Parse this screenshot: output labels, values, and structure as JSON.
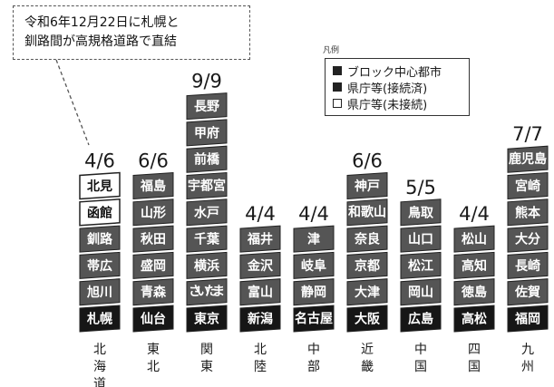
{
  "callout": {
    "line1": "令和6年12月22日に札幌と",
    "line2": "釧路間が高規格道路で直結"
  },
  "legend": {
    "title": "凡例",
    "items": [
      {
        "label": "ブロック中心都市",
        "style": "block"
      },
      {
        "label": "県庁等(接続済)",
        "style": "solid"
      },
      {
        "label": "県庁等(未接続)",
        "style": "open"
      }
    ]
  },
  "colors": {
    "block": "#161616",
    "solid": "#555555",
    "open": "#ffffff"
  },
  "chart_data": {
    "type": "table",
    "categories": [
      "北海道",
      "東北",
      "関東",
      "北陸",
      "中部",
      "近畿",
      "中国",
      "四国",
      "九州"
    ],
    "ratios": [
      "4/6",
      "6/6",
      "9/9",
      "4/4",
      "4/4",
      "6/6",
      "5/5",
      "4/4",
      "7/7"
    ],
    "connected": [
      4,
      6,
      9,
      4,
      4,
      6,
      5,
      4,
      7
    ],
    "total": [
      6,
      6,
      9,
      4,
      4,
      6,
      5,
      4,
      7
    ],
    "cities": [
      [
        {
          "name": "札幌",
          "style": "block"
        },
        {
          "name": "旭川",
          "style": "solid"
        },
        {
          "name": "帯広",
          "style": "solid"
        },
        {
          "name": "釧路",
          "style": "solid"
        },
        {
          "name": "函館",
          "style": "open"
        },
        {
          "name": "北見",
          "style": "open"
        }
      ],
      [
        {
          "name": "仙台",
          "style": "block"
        },
        {
          "name": "青森",
          "style": "solid"
        },
        {
          "name": "盛岡",
          "style": "solid"
        },
        {
          "name": "秋田",
          "style": "solid"
        },
        {
          "name": "山形",
          "style": "solid"
        },
        {
          "name": "福島",
          "style": "solid"
        }
      ],
      [
        {
          "name": "東京",
          "style": "block"
        },
        {
          "name": "さいたま",
          "style": "solid"
        },
        {
          "name": "横浜",
          "style": "solid"
        },
        {
          "name": "千葉",
          "style": "solid"
        },
        {
          "name": "水戸",
          "style": "solid"
        },
        {
          "name": "宇都宮",
          "style": "solid"
        },
        {
          "name": "前橋",
          "style": "solid"
        },
        {
          "name": "甲府",
          "style": "solid"
        },
        {
          "name": "長野",
          "style": "solid"
        }
      ],
      [
        {
          "name": "新潟",
          "style": "block"
        },
        {
          "name": "富山",
          "style": "solid"
        },
        {
          "name": "金沢",
          "style": "solid"
        },
        {
          "name": "福井",
          "style": "solid"
        }
      ],
      [
        {
          "name": "名古屋",
          "style": "block"
        },
        {
          "name": "静岡",
          "style": "solid"
        },
        {
          "name": "岐阜",
          "style": "solid"
        },
        {
          "name": "津",
          "style": "solid"
        }
      ],
      [
        {
          "name": "大阪",
          "style": "block"
        },
        {
          "name": "大津",
          "style": "solid"
        },
        {
          "name": "京都",
          "style": "solid"
        },
        {
          "name": "奈良",
          "style": "solid"
        },
        {
          "name": "和歌山",
          "style": "solid"
        },
        {
          "name": "神戸",
          "style": "solid"
        }
      ],
      [
        {
          "name": "広島",
          "style": "block"
        },
        {
          "name": "岡山",
          "style": "solid"
        },
        {
          "name": "松江",
          "style": "solid"
        },
        {
          "name": "山口",
          "style": "solid"
        },
        {
          "name": "鳥取",
          "style": "solid"
        }
      ],
      [
        {
          "name": "高松",
          "style": "block"
        },
        {
          "name": "徳島",
          "style": "solid"
        },
        {
          "name": "高知",
          "style": "solid"
        },
        {
          "name": "松山",
          "style": "solid"
        }
      ],
      [
        {
          "name": "福岡",
          "style": "block"
        },
        {
          "name": "佐賀",
          "style": "solid"
        },
        {
          "name": "長崎",
          "style": "solid"
        },
        {
          "name": "大分",
          "style": "solid"
        },
        {
          "name": "熊本",
          "style": "solid"
        },
        {
          "name": "宮崎",
          "style": "solid"
        },
        {
          "name": "鹿児島",
          "style": "solid"
        }
      ]
    ]
  }
}
